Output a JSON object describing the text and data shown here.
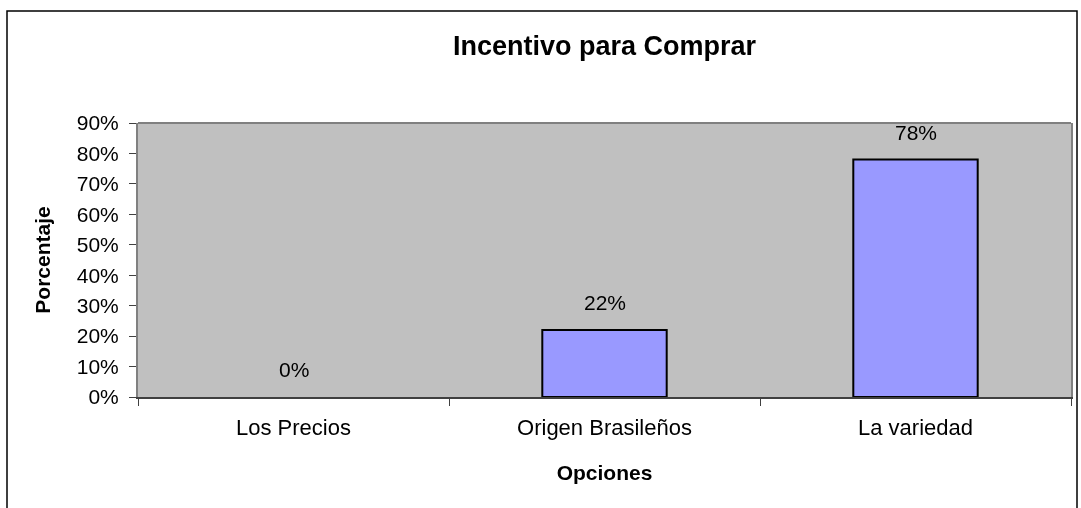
{
  "chart_data": {
    "type": "bar",
    "title": "Incentivo para Comprar",
    "xlabel": "Opciones",
    "ylabel": "Porcentaje",
    "categories": [
      "Los Precios",
      "Origen Brasileños",
      "La variedad"
    ],
    "values": [
      0,
      22,
      78
    ],
    "color": "#9999ff",
    "value_labels": [
      "0%",
      "22%",
      "78%"
    ],
    "ylim": [
      0,
      90
    ],
    "yticks": [
      {
        "value": 0,
        "label": "0%"
      },
      {
        "value": 10,
        "label": "10%"
      },
      {
        "value": 20,
        "label": "20%"
      },
      {
        "value": 30,
        "label": "30%"
      },
      {
        "value": 40,
        "label": "40%"
      },
      {
        "value": 50,
        "label": "50%"
      },
      {
        "value": 60,
        "label": "60%"
      },
      {
        "value": 70,
        "label": "70%"
      },
      {
        "value": 80,
        "label": "80%"
      },
      {
        "value": 90,
        "label": "90%"
      }
    ]
  }
}
